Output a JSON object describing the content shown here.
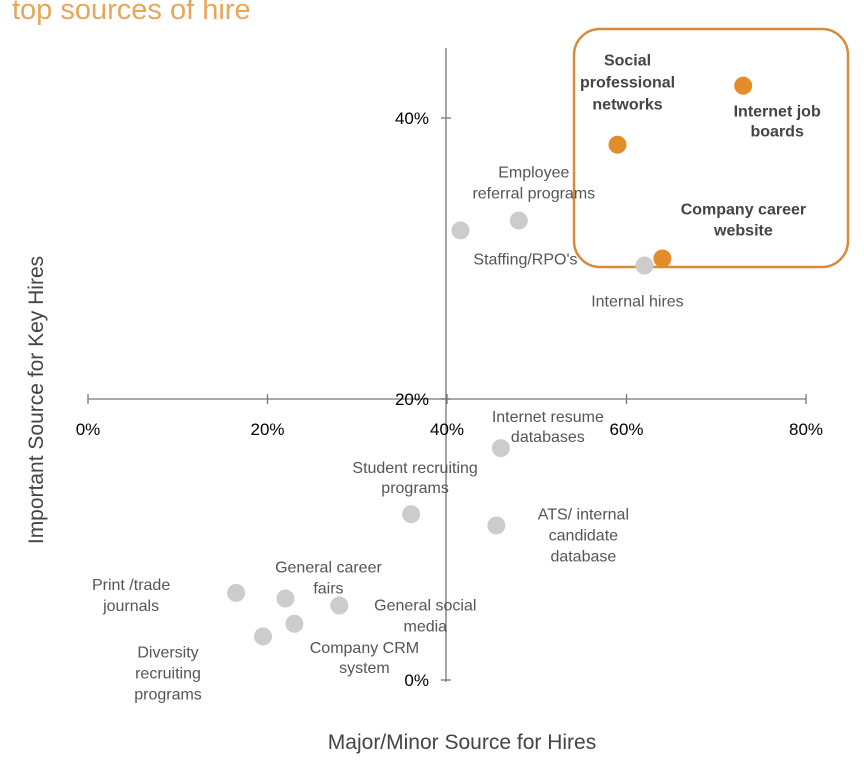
{
  "title": "top sources of hire",
  "chart_data": {
    "type": "scatter",
    "title": "top sources of hire",
    "xlabel": "Major/Minor Source for Hires",
    "ylabel": "Important Source for Key Hires",
    "xlim": [
      0,
      80
    ],
    "ylim": [
      0,
      45
    ],
    "x_ticks": [
      "0%",
      "20%",
      "40%",
      "60%",
      "80%"
    ],
    "y_ticks": [
      "0%",
      "20%",
      "40%"
    ],
    "grid": false,
    "highlight_color": "#e48b2b",
    "point_color": "#cccccc",
    "highlight_box_color": "#d98b3a",
    "points": [
      {
        "name": "Internet job boards",
        "lines": [
          "Internet job",
          "boards"
        ],
        "x": 73,
        "y": 42.3,
        "highlight": true
      },
      {
        "name": "Social professional networks",
        "lines": [
          "Social",
          "professional",
          "networks"
        ],
        "x": 59,
        "y": 38.1,
        "highlight": true
      },
      {
        "name": "Company career website",
        "lines": [
          "Company career",
          "website"
        ],
        "x": 64,
        "y": 30.0,
        "highlight": true
      },
      {
        "name": "Internal hires",
        "lines": [
          "Internal  hires"
        ],
        "x": 62,
        "y": 29.5,
        "highlight": false
      },
      {
        "name": "Employee referral programs",
        "lines": [
          "Employee",
          "referral programs"
        ],
        "x": 48,
        "y": 32.7,
        "highlight": false
      },
      {
        "name": "Staffing/RPO's",
        "lines": [
          "Staffing/RPO's"
        ],
        "x": 41.5,
        "y": 32.0,
        "highlight": false
      },
      {
        "name": "Internet resume databases",
        "lines": [
          "Internet resume",
          "databases"
        ],
        "x": 46,
        "y": 16.5,
        "highlight": false
      },
      {
        "name": "Student recruiting programs",
        "lines": [
          "Student recruiting",
          "programs"
        ],
        "x": 36,
        "y": 11.8,
        "highlight": false
      },
      {
        "name": "ATS/ internal candidate database",
        "lines": [
          "ATS/ internal",
          "candidate",
          "database"
        ],
        "x": 45.5,
        "y": 11.0,
        "highlight": false
      },
      {
        "name": "General social media",
        "lines": [
          "General social",
          "media"
        ],
        "x": 28,
        "y": 5.3,
        "highlight": false
      },
      {
        "name": "General career fairs",
        "lines": [
          "General career",
          "fairs"
        ],
        "x": 22,
        "y": 5.8,
        "highlight": false
      },
      {
        "name": "Print /trade journals",
        "lines": [
          "Print /trade",
          "journals"
        ],
        "x": 16.5,
        "y": 6.2,
        "highlight": false
      },
      {
        "name": "Company CRM system",
        "lines": [
          "Company  CRM",
          "system"
        ],
        "x": 23,
        "y": 4.0,
        "highlight": false
      },
      {
        "name": "Diversity recruiting programs",
        "lines": [
          "Diversity",
          "recruiting",
          "programs"
        ],
        "x": 19.5,
        "y": 3.1,
        "highlight": false
      }
    ]
  }
}
